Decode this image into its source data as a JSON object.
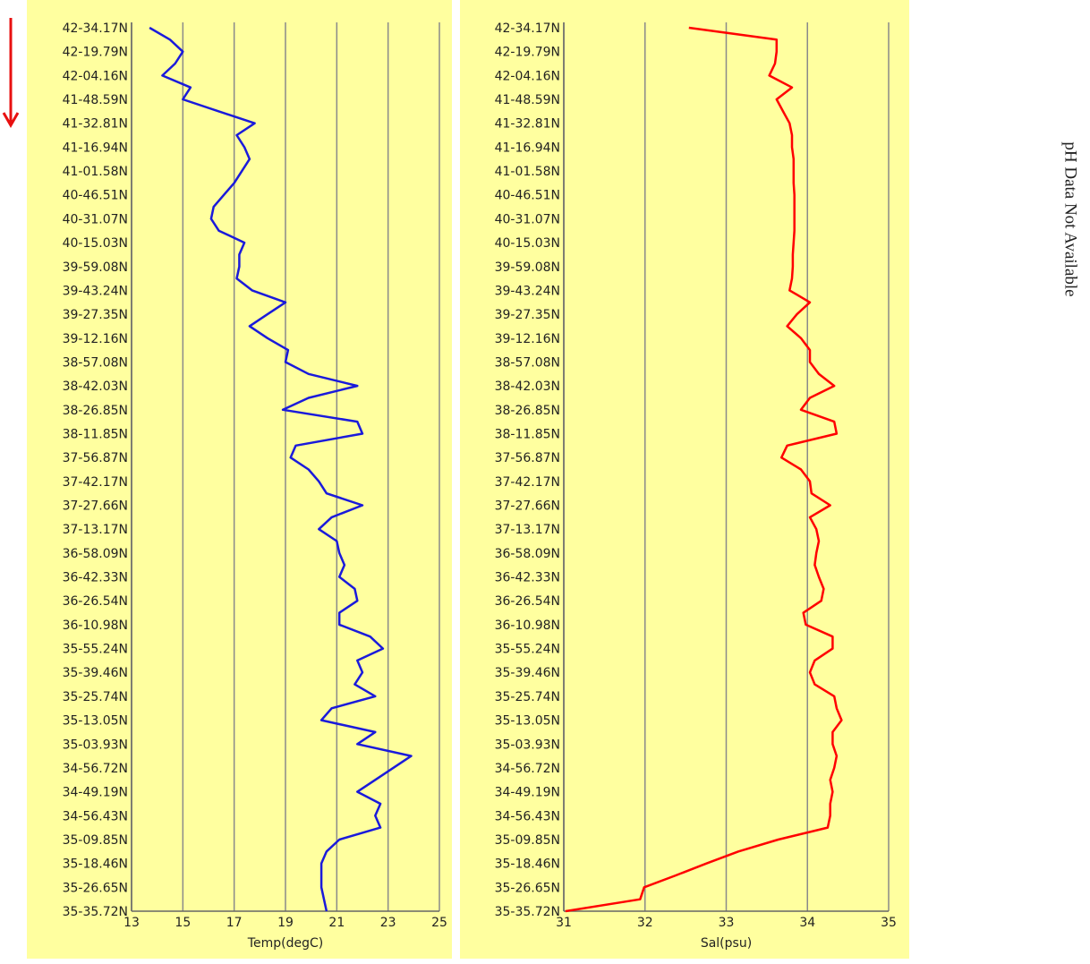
{
  "chart_data": [
    {
      "type": "line",
      "orientation": "horizontal",
      "categories": [
        "42-34.17N",
        null,
        "42-19.79N",
        null,
        "42-04.16N",
        null,
        "41-48.59N",
        null,
        "41-32.81N",
        null,
        "41-16.94N",
        null,
        "41-01.58N",
        null,
        "40-46.51N",
        null,
        "40-31.07N",
        null,
        "40-15.03N",
        null,
        "39-59.08N",
        null,
        "39-43.24N",
        null,
        "39-27.35N",
        null,
        "39-12.16N",
        null,
        "38-57.08N",
        null,
        "38-42.03N",
        null,
        "38-26.85N",
        null,
        "38-11.85N",
        null,
        "37-56.87N",
        null,
        "37-42.17N",
        null,
        "37-27.66N",
        null,
        "37-13.17N",
        null,
        "36-58.09N",
        null,
        "36-42.33N",
        null,
        "36-26.54N",
        null,
        "36-10.98N",
        null,
        "35-55.24N",
        null,
        "35-39.46N",
        null,
        "35-25.74N",
        null,
        "35-13.05N",
        null,
        "35-03.93N",
        null,
        "34-56.72N",
        null,
        "34-49.19N",
        null,
        "34-56.43N",
        null,
        "35-09.85N",
        null,
        "35-18.46N",
        null,
        "35-26.65N",
        null,
        "35-35.72N"
      ],
      "values": [
        13.7,
        14.5,
        15.0,
        14.7,
        14.2,
        15.3,
        15.0,
        16.4,
        17.8,
        17.1,
        17.4,
        17.6,
        17.3,
        17.0,
        16.6,
        16.2,
        16.1,
        16.4,
        17.4,
        17.2,
        17.2,
        17.1,
        17.7,
        19.0,
        18.3,
        17.6,
        18.3,
        19.1,
        19.0,
        19.9,
        21.8,
        19.9,
        18.9,
        21.8,
        22.0,
        19.4,
        19.2,
        19.9,
        20.3,
        20.6,
        22.0,
        20.8,
        20.3,
        21.0,
        21.1,
        21.3,
        21.1,
        21.7,
        21.8,
        21.1,
        21.1,
        22.3,
        22.8,
        21.8,
        22.0,
        21.7,
        22.5,
        20.8,
        20.4,
        22.5,
        21.8,
        23.9,
        23.2,
        22.5,
        21.8,
        22.7,
        22.5,
        22.7,
        21.1,
        20.6,
        20.4,
        20.4,
        20.4,
        20.5,
        20.6
      ],
      "color": "#1a1adb",
      "xlabel": "Temp(degC)",
      "xlim": [
        13,
        25
      ],
      "xticks": [
        13,
        15,
        17,
        19,
        21,
        23,
        25
      ],
      "grid": true
    },
    {
      "type": "line",
      "orientation": "horizontal",
      "categories": [
        "42-34.17N",
        null,
        "42-19.79N",
        null,
        "42-04.16N",
        null,
        "41-48.59N",
        null,
        "41-32.81N",
        null,
        "41-16.94N",
        null,
        "41-01.58N",
        null,
        "40-46.51N",
        null,
        "40-31.07N",
        null,
        "40-15.03N",
        null,
        "39-59.08N",
        null,
        "39-43.24N",
        null,
        "39-27.35N",
        null,
        "39-12.16N",
        null,
        "38-57.08N",
        null,
        "38-42.03N",
        null,
        "38-26.85N",
        null,
        "38-11.85N",
        null,
        "37-56.87N",
        null,
        "37-42.17N",
        null,
        "37-27.66N",
        null,
        "37-13.17N",
        null,
        "36-58.09N",
        null,
        "36-42.33N",
        null,
        "36-26.54N",
        null,
        "36-10.98N",
        null,
        "35-55.24N",
        null,
        "35-39.46N",
        null,
        "35-25.74N",
        null,
        "35-13.05N",
        null,
        "35-03.93N",
        null,
        "34-56.72N",
        null,
        "34-49.19N",
        null,
        "34-56.43N",
        null,
        "35-09.85N",
        null,
        "35-18.46N",
        null,
        "35-26.65N",
        null,
        "35-35.72N"
      ],
      "values": [
        32.54,
        33.62,
        33.62,
        33.6,
        33.53,
        33.81,
        33.62,
        33.7,
        33.78,
        33.81,
        33.81,
        33.83,
        33.83,
        33.83,
        33.84,
        33.84,
        33.84,
        33.84,
        33.83,
        33.82,
        33.82,
        33.81,
        33.78,
        34.03,
        33.87,
        33.75,
        33.92,
        34.03,
        34.03,
        34.14,
        34.33,
        34.03,
        33.92,
        34.33,
        34.36,
        33.75,
        33.68,
        33.92,
        34.03,
        34.05,
        34.28,
        34.03,
        34.11,
        34.14,
        34.11,
        34.09,
        34.14,
        34.2,
        34.17,
        33.95,
        33.98,
        34.31,
        34.31,
        34.09,
        34.03,
        34.09,
        34.33,
        34.36,
        34.42,
        34.31,
        34.31,
        34.36,
        34.33,
        34.28,
        34.31,
        34.28,
        34.28,
        34.25,
        33.64,
        33.15,
        32.76,
        32.38,
        31.99,
        31.94,
        31.02
      ],
      "color": "#ff0000",
      "xlabel": "Sal(psu)",
      "xlim": [
        31,
        35
      ],
      "xticks": [
        31,
        32,
        33,
        34,
        35
      ],
      "grid": true
    }
  ],
  "annotation": "pH Data Not Available"
}
